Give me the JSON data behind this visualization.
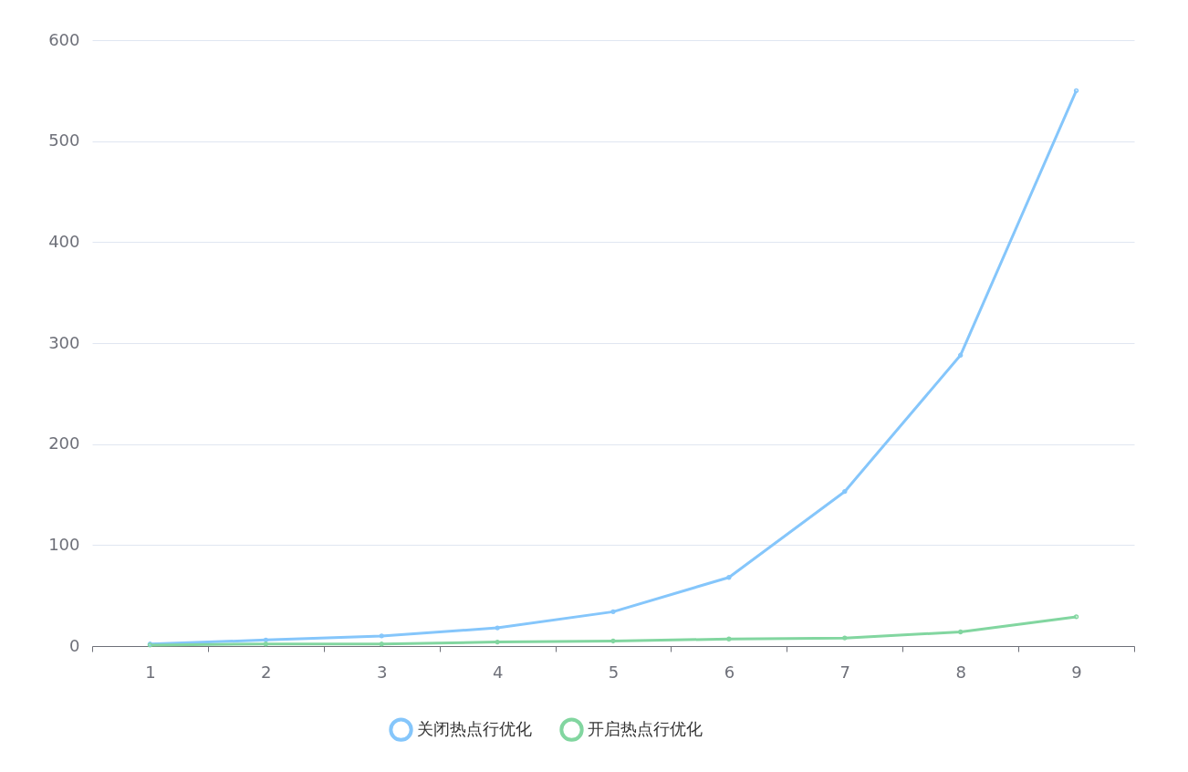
{
  "chart_data": {
    "type": "line",
    "categories": [
      "1",
      "2",
      "3",
      "4",
      "5",
      "6",
      "7",
      "8",
      "9"
    ],
    "series": [
      {
        "name": "关闭热点行优化",
        "color": "#85c6fb",
        "values": [
          2,
          6,
          10,
          18,
          34,
          68,
          153,
          288,
          550
        ]
      },
      {
        "name": "开启热点行优化",
        "color": "#82d6a0",
        "values": [
          1,
          2,
          2,
          4,
          5,
          7,
          8,
          14,
          29
        ]
      }
    ],
    "ylim": [
      0,
      600
    ],
    "yticks": [
      0,
      100,
      200,
      300,
      400,
      500,
      600
    ],
    "grid": "y",
    "legend": "bottom",
    "marker": "circle",
    "line_style": "solid"
  }
}
